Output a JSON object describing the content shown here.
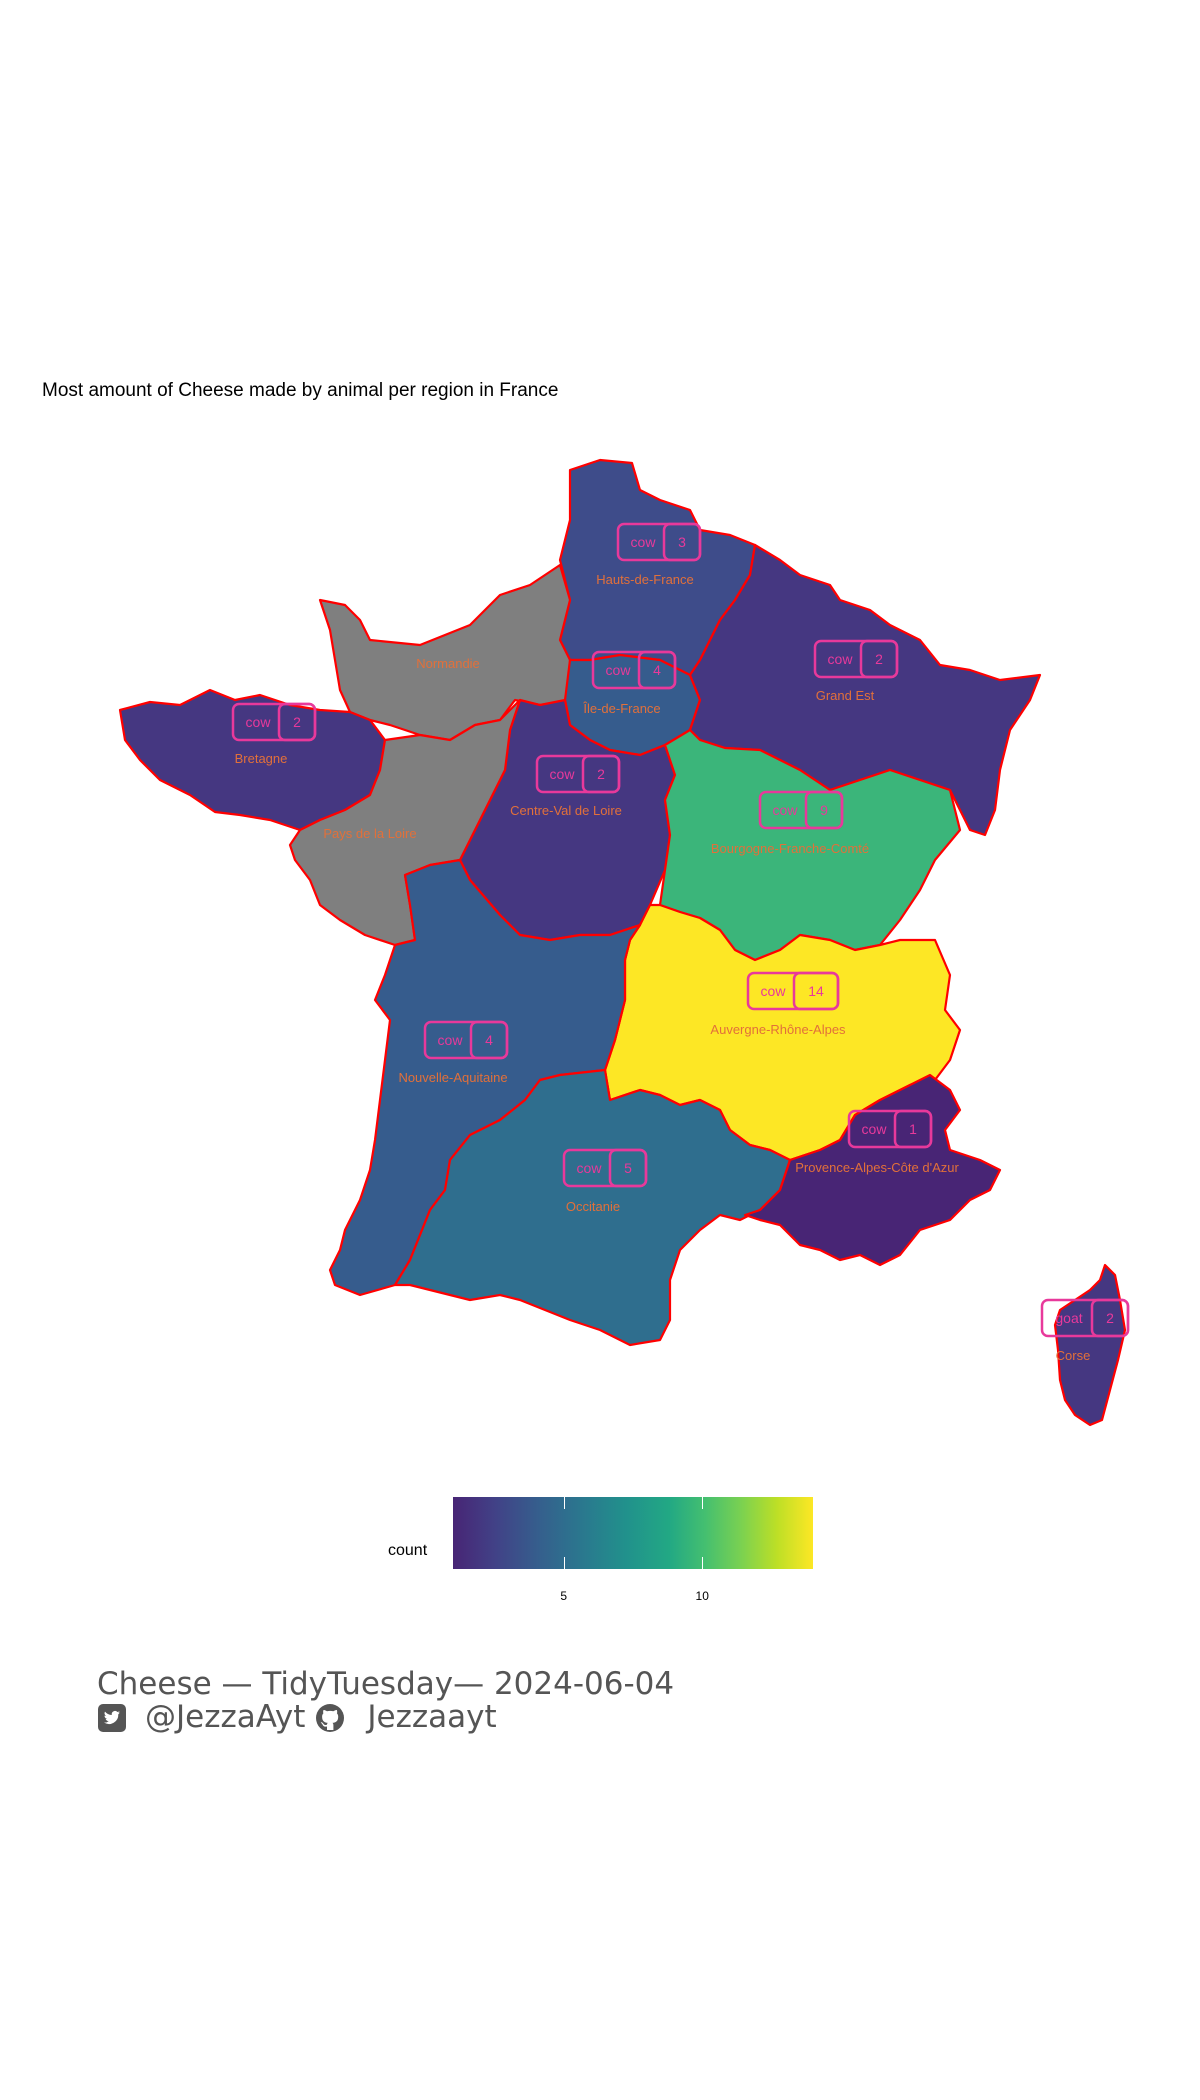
{
  "title": "Most amount of Cheese made by animal per region in France",
  "legend": {
    "title": "count",
    "ticks": [
      5,
      10
    ],
    "range": [
      1,
      14
    ],
    "palette": "viridis"
  },
  "regions": [
    {
      "name": "Hauts-de-France",
      "animal": "cow",
      "count": "3",
      "fill": "#3e4c8a"
    },
    {
      "name": "Normandie",
      "animal": "",
      "count": "",
      "fill": "#7f7f7f"
    },
    {
      "name": "Île-de-France",
      "animal": "cow",
      "count": "4",
      "fill": "#365c8d"
    },
    {
      "name": "Grand Est",
      "animal": "cow",
      "count": "2",
      "fill": "#453781"
    },
    {
      "name": "Bretagne",
      "animal": "cow",
      "count": "2",
      "fill": "#453781"
    },
    {
      "name": "Centre-Val de Loire",
      "animal": "cow",
      "count": "2",
      "fill": "#453781"
    },
    {
      "name": "Bourgogne-Franche-Comté",
      "animal": "cow",
      "count": "9",
      "fill": "#3bb57a"
    },
    {
      "name": "Pays de la Loire",
      "animal": "",
      "count": "",
      "fill": "#7f7f7f"
    },
    {
      "name": "Auvergne-Rhône-Alpes",
      "animal": "cow",
      "count": "14",
      "fill": "#fde725"
    },
    {
      "name": "Nouvelle-Aquitaine",
      "animal": "cow",
      "count": "4",
      "fill": "#365c8d"
    },
    {
      "name": "Occitanie",
      "animal": "cow",
      "count": "5",
      "fill": "#2f6e8e"
    },
    {
      "name": "Provence-Alpes-Côte d'Azur",
      "animal": "cow",
      "count": "1",
      "fill": "#482575"
    },
    {
      "name": "Corse",
      "animal": "goat",
      "count": "2",
      "fill": "#453781"
    }
  ],
  "caption": {
    "line1": "Cheese — TidyTuesday— 2024-06-04",
    "twitter": "@JezzaAyt",
    "github": "Jezzaayt",
    "twitter_icon": "twitter-square-icon",
    "github_icon": "github-icon"
  }
}
